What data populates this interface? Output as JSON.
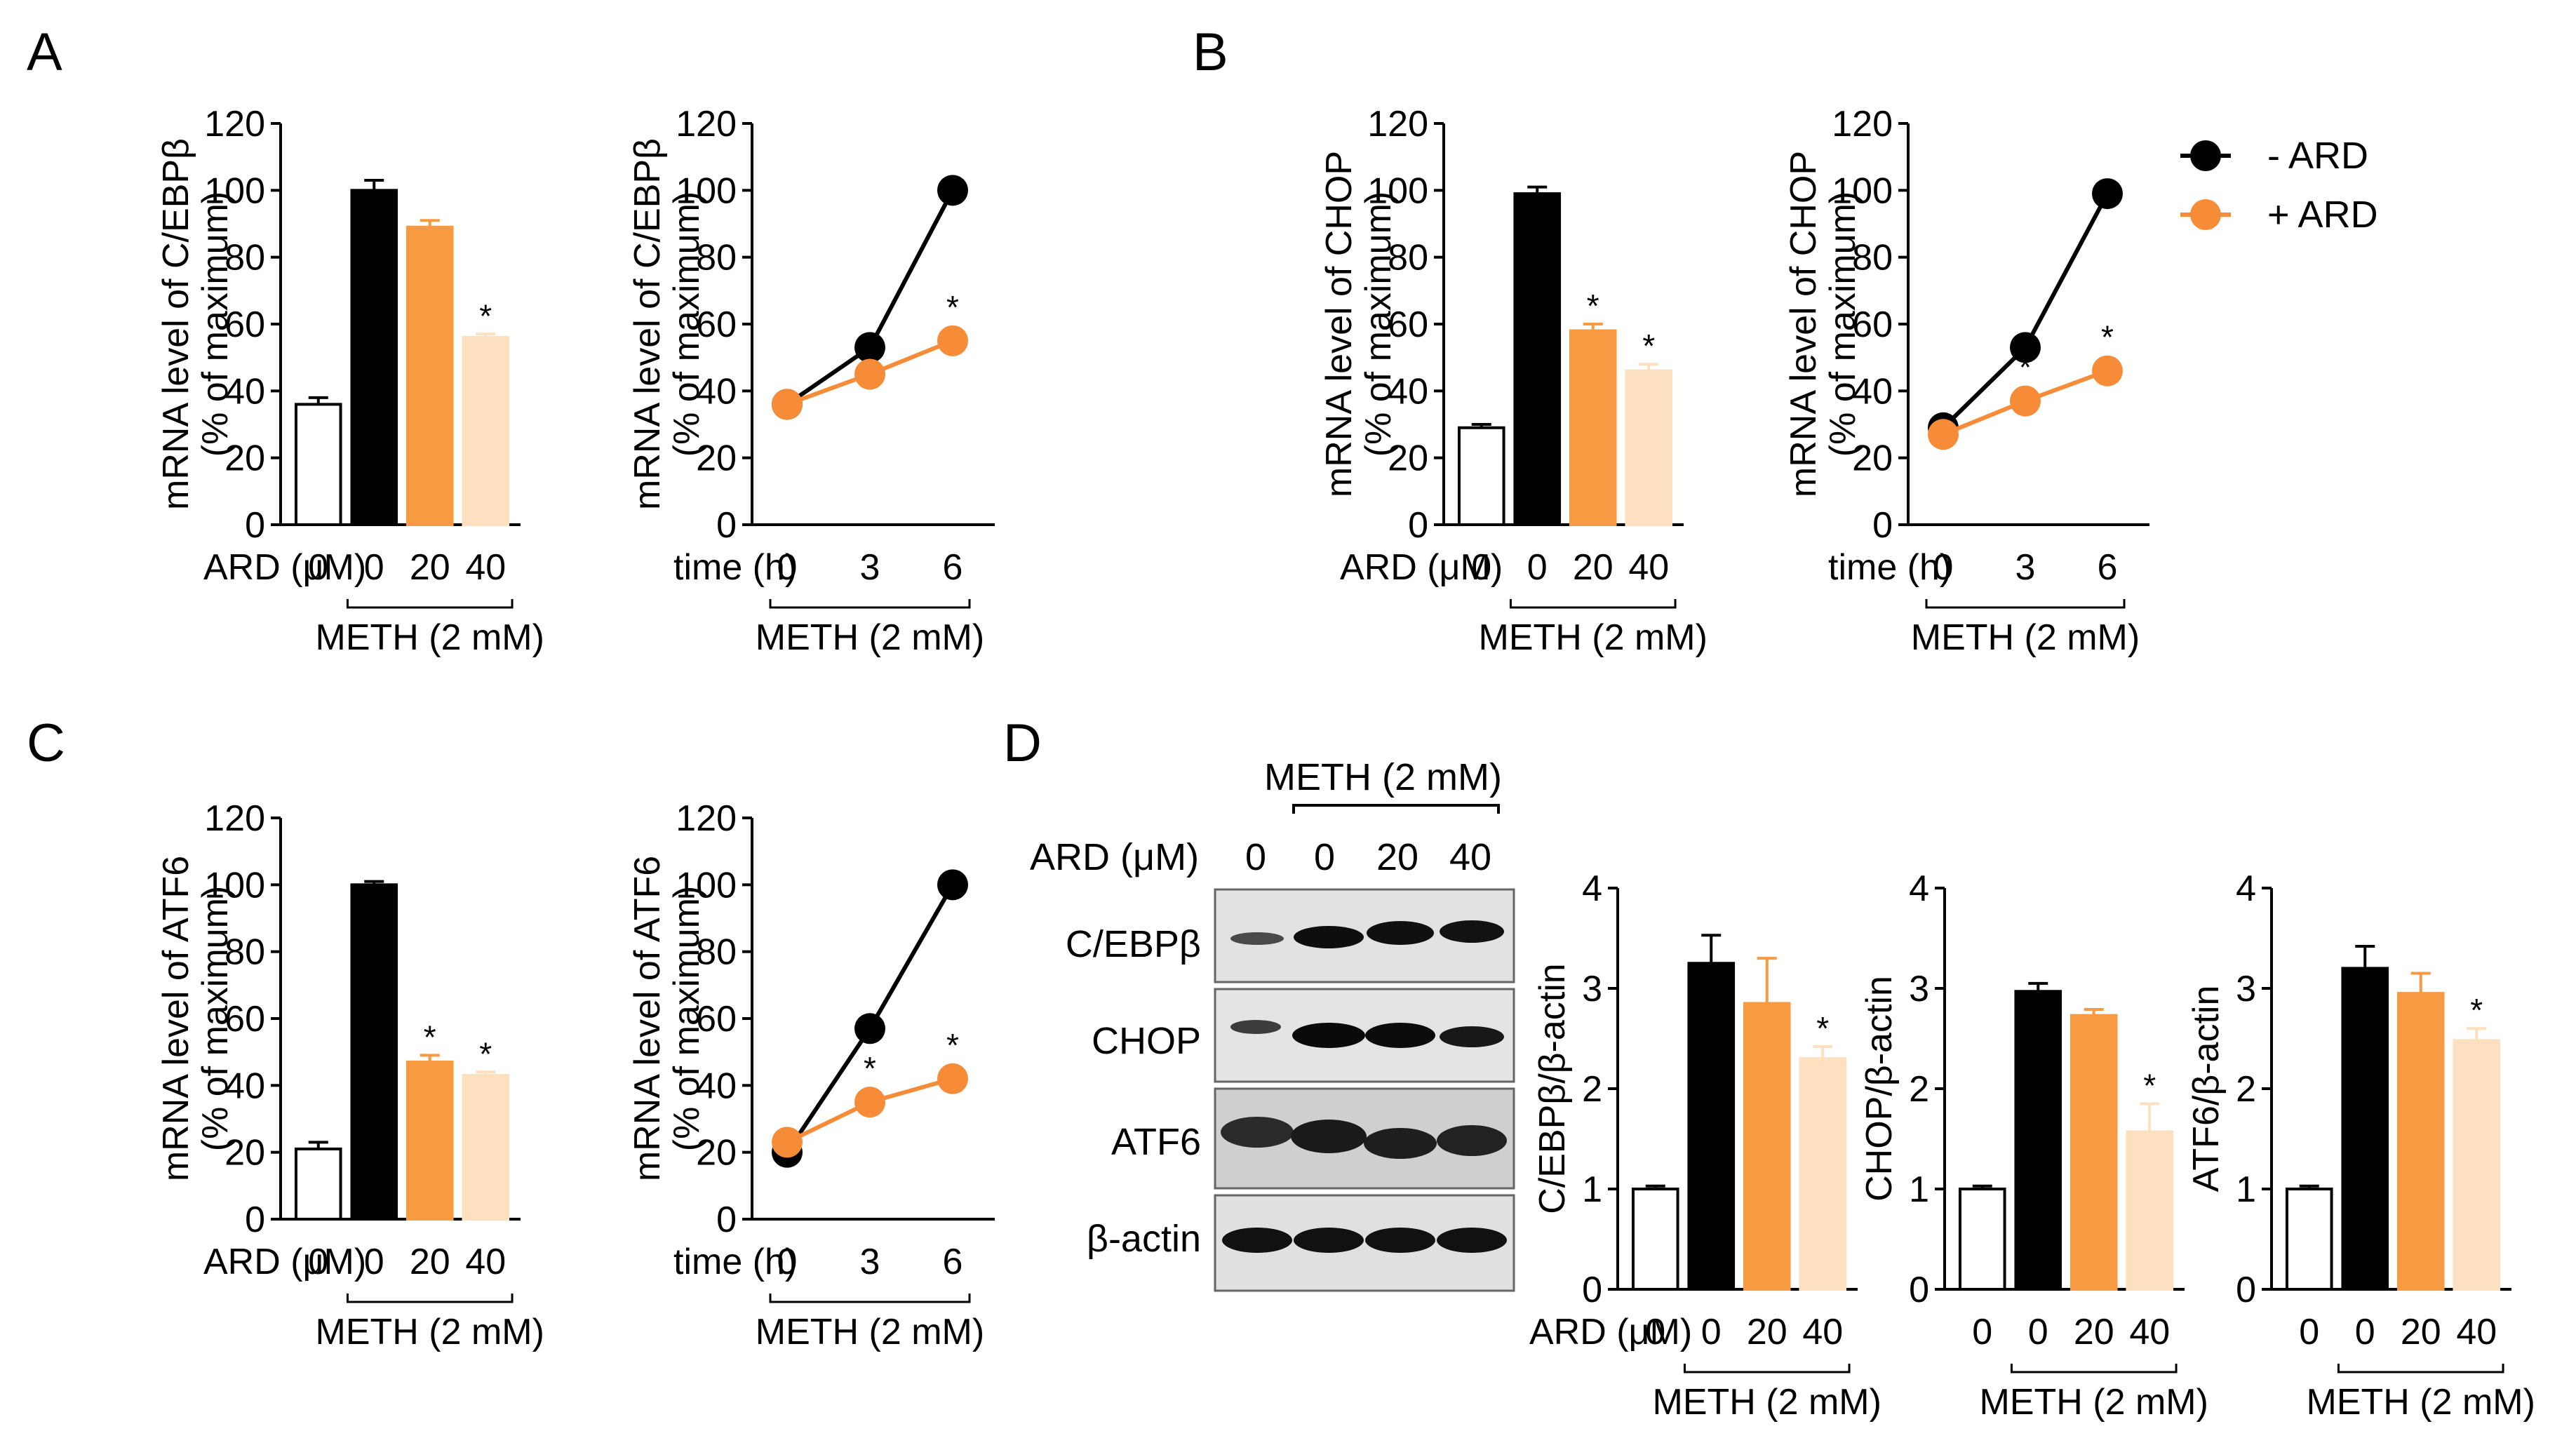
{
  "colors": {
    "vehicle": "#ffffff",
    "meth": "#000000",
    "ard20": "#f79a42",
    "ard40": "#fde0c0",
    "minus_ard": "#000000",
    "plus_ard": "#f78c38"
  },
  "legend": {
    "minus": "- ARD",
    "plus": "+ ARD"
  },
  "panel_letters": [
    "A",
    "B",
    "C",
    "D"
  ],
  "western_blot": {
    "header": "METH (2 mM)",
    "ard_label": "ARD (μM)",
    "lanes": [
      "0",
      "0",
      "20",
      "40"
    ],
    "rows": [
      "C/EBPβ",
      "CHOP",
      "ATF6",
      "β-actin"
    ]
  },
  "chart_data": [
    {
      "id": "A-bar",
      "panel": "A",
      "type": "bar",
      "ylabel_line1": "mRNA level of C/EBPβ",
      "ylabel_line2": "(% of maximum)",
      "ylim": [
        0,
        120
      ],
      "yticks": [
        0,
        20,
        40,
        60,
        80,
        100,
        120
      ],
      "x_prefix": "ARD (μM)",
      "categories": [
        "0",
        "0",
        "20",
        "40"
      ],
      "group_label": "METH (2 mM)",
      "values": [
        36,
        100,
        89,
        56
      ],
      "errors": [
        2,
        3,
        2,
        1
      ],
      "significant": [
        false,
        false,
        false,
        true
      ]
    },
    {
      "id": "A-line",
      "panel": "A",
      "type": "line",
      "ylabel_line1": "mRNA level of C/EBPβ",
      "ylabel_line2": "(% of maximum)",
      "ylim": [
        0,
        120
      ],
      "yticks": [
        0,
        20,
        40,
        60,
        80,
        100,
        120
      ],
      "x_prefix": "time (h)",
      "x": [
        "0",
        "3",
        "6"
      ],
      "group_label": "METH (2 mM)",
      "series": [
        {
          "name": "- ARD",
          "values": [
            36,
            53,
            100
          ]
        },
        {
          "name": "+ ARD",
          "values": [
            36,
            45,
            55
          ]
        }
      ],
      "significant": [
        false,
        false,
        true
      ]
    },
    {
      "id": "B-bar",
      "panel": "B",
      "type": "bar",
      "ylabel_line1": "mRNA level of CHOP",
      "ylabel_line2": "(% of maximum)",
      "ylim": [
        0,
        120
      ],
      "yticks": [
        0,
        20,
        40,
        60,
        80,
        100,
        120
      ],
      "x_prefix": "ARD (μM)",
      "categories": [
        "0",
        "0",
        "20",
        "40"
      ],
      "group_label": "METH (2 mM)",
      "values": [
        29,
        99,
        58,
        46
      ],
      "errors": [
        1,
        2,
        2,
        2
      ],
      "significant": [
        false,
        false,
        true,
        true
      ]
    },
    {
      "id": "B-line",
      "panel": "B",
      "type": "line",
      "ylabel_line1": "mRNA level of CHOP",
      "ylabel_line2": "(% of maximum)",
      "ylim": [
        0,
        120
      ],
      "yticks": [
        0,
        20,
        40,
        60,
        80,
        100,
        120
      ],
      "x_prefix": "time (h)",
      "x": [
        "0",
        "3",
        "6"
      ],
      "group_label": "METH (2 mM)",
      "series": [
        {
          "name": "- ARD",
          "values": [
            29,
            53,
            99
          ]
        },
        {
          "name": "+ ARD",
          "values": [
            27,
            37,
            46
          ]
        }
      ],
      "significant": [
        false,
        true,
        true
      ]
    },
    {
      "id": "C-bar",
      "panel": "C",
      "type": "bar",
      "ylabel_line1": "mRNA level of ATF6",
      "ylabel_line2": "(% of maximum)",
      "ylim": [
        0,
        120
      ],
      "yticks": [
        0,
        20,
        40,
        60,
        80,
        100,
        120
      ],
      "x_prefix": "ARD (μM)",
      "categories": [
        "0",
        "0",
        "20",
        "40"
      ],
      "group_label": "METH (2 mM)",
      "values": [
        21,
        100,
        47,
        43
      ],
      "errors": [
        2,
        1,
        2,
        1
      ],
      "significant": [
        false,
        false,
        true,
        true
      ]
    },
    {
      "id": "C-line",
      "panel": "C",
      "type": "line",
      "ylabel_line1": "mRNA level of ATF6",
      "ylabel_line2": "(% of maximum)",
      "ylim": [
        0,
        120
      ],
      "yticks": [
        0,
        20,
        40,
        60,
        80,
        100,
        120
      ],
      "x_prefix": "time (h)",
      "x": [
        "0",
        "3",
        "6"
      ],
      "group_label": "METH (2 mM)",
      "series": [
        {
          "name": "- ARD",
          "values": [
            20,
            57,
            100
          ]
        },
        {
          "name": "+ ARD",
          "values": [
            23,
            35,
            42
          ]
        }
      ],
      "significant": [
        false,
        true,
        true
      ]
    },
    {
      "id": "D-cebpb",
      "panel": "D",
      "type": "bar",
      "ylabel_line1": "C/EBPβ/β-actin",
      "ylim": [
        0,
        4
      ],
      "yticks": [
        0,
        1,
        2,
        3,
        4
      ],
      "x_prefix": "ARD (μM)",
      "categories": [
        "0",
        "0",
        "20",
        "40"
      ],
      "group_label": "METH (2 mM)",
      "values": [
        1.0,
        3.25,
        2.85,
        2.3
      ],
      "errors": [
        0.03,
        0.28,
        0.45,
        0.12
      ],
      "significant": [
        false,
        false,
        false,
        true
      ]
    },
    {
      "id": "D-chop",
      "panel": "D",
      "type": "bar",
      "ylabel_line1": "CHOP/β-actin",
      "ylim": [
        0,
        4
      ],
      "yticks": [
        0,
        1,
        2,
        3,
        4
      ],
      "x_prefix": "",
      "categories": [
        "0",
        "0",
        "20",
        "40"
      ],
      "group_label": "METH (2 mM)",
      "values": [
        1.0,
        2.97,
        2.73,
        1.57
      ],
      "errors": [
        0.03,
        0.08,
        0.06,
        0.28
      ],
      "significant": [
        false,
        false,
        false,
        true
      ]
    },
    {
      "id": "D-atf6",
      "panel": "D",
      "type": "bar",
      "ylabel_line1": "ATF6/β-actin",
      "ylim": [
        0,
        4
      ],
      "yticks": [
        0,
        1,
        2,
        3,
        4
      ],
      "x_prefix": "",
      "categories": [
        "0",
        "0",
        "20",
        "40"
      ],
      "group_label": "METH (2 mM)",
      "values": [
        1.0,
        3.2,
        2.95,
        2.48
      ],
      "errors": [
        0.03,
        0.22,
        0.2,
        0.12
      ],
      "significant": [
        false,
        false,
        false,
        true
      ]
    }
  ]
}
